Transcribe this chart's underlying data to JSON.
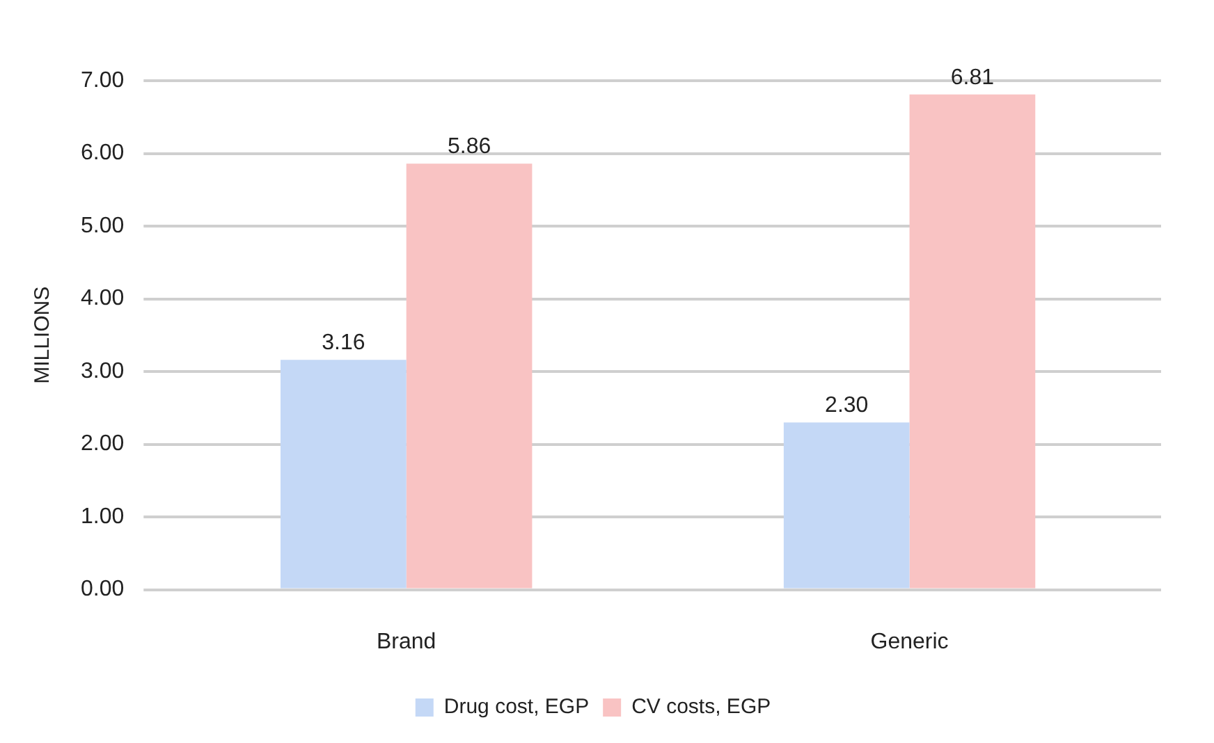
{
  "chart_data": {
    "type": "bar",
    "ylabel": "MILLIONS",
    "categories": [
      "Brand",
      "Generic"
    ],
    "series": [
      {
        "name": "Drug cost, EGP",
        "color": "#c4d8f6",
        "values": [
          3.16,
          2.3
        ],
        "value_labels": [
          "3.16",
          "2.30"
        ]
      },
      {
        "name": "CV costs, EGP",
        "color": "#f9c3c3",
        "values": [
          5.86,
          6.81
        ],
        "value_labels": [
          "5.86",
          "6.81"
        ]
      }
    ],
    "ylim": [
      0,
      7
    ],
    "yticks": [
      {
        "value": 0,
        "label": "0.00"
      },
      {
        "value": 1,
        "label": "1.00"
      },
      {
        "value": 2,
        "label": "2.00"
      },
      {
        "value": 3,
        "label": "3.00"
      },
      {
        "value": 4,
        "label": "4.00"
      },
      {
        "value": 5,
        "label": "5.00"
      },
      {
        "value": 6,
        "label": "6.00"
      },
      {
        "value": 7,
        "label": "7.00"
      }
    ],
    "grid": "y",
    "legend": "bottom"
  }
}
